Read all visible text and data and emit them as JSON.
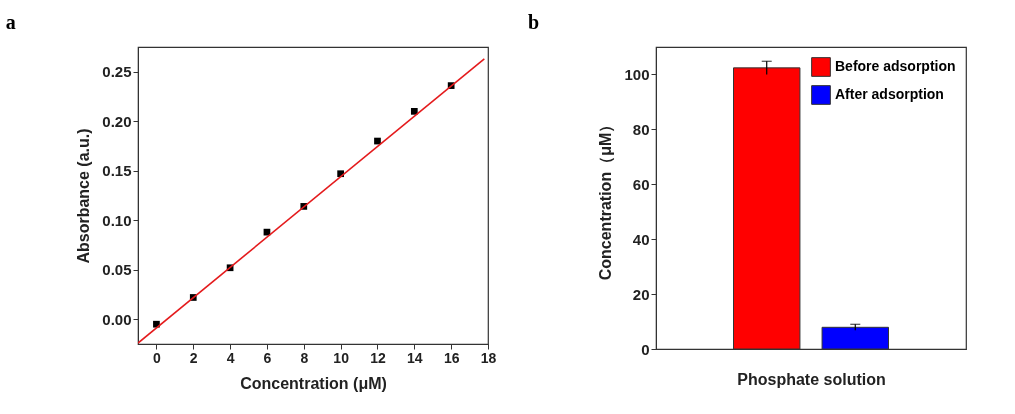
{
  "chart_data": [
    {
      "type": "scatter",
      "title": "a",
      "xlabel": "Concentration (μM)",
      "ylabel": "Absorbance (a.u.)",
      "xlim": [
        -1,
        18
      ],
      "xticks": [
        0,
        2,
        4,
        6,
        8,
        10,
        12,
        14,
        16,
        18
      ],
      "ylim": [
        -0.025,
        0.275
      ],
      "yticks": [
        {
          "value": 0,
          "label": "0.00"
        },
        {
          "value": 0.05,
          "label": "0.05"
        },
        {
          "value": 0.1,
          "label": "0.10"
        },
        {
          "value": 0.15,
          "label": "0.15"
        },
        {
          "value": 0.2,
          "label": "0.20"
        },
        {
          "value": 0.25,
          "label": "0.25"
        }
      ],
      "grid": false,
      "legend": false,
      "marker": "square",
      "x": [
        0,
        2,
        4,
        6,
        8,
        10,
        12,
        14,
        16
      ],
      "series": [
        {
          "color": "#000000",
          "values": [
            -0.005,
            0.022,
            0.052,
            0.088,
            0.114,
            0.147,
            0.18,
            0.21,
            0.236
          ]
        },
        {
          "type": "line",
          "marker": "none",
          "color": "#e41a1c",
          "x": [
            -1,
            17.8
          ],
          "values": [
            -0.024,
            0.263
          ]
        }
      ]
    },
    {
      "type": "bar",
      "title": "b",
      "xlabel": "Phosphate solution",
      "ylabel": "Concentration（μM）",
      "categories": [
        null
      ],
      "ylim": [
        0,
        110
      ],
      "yticks": [
        0,
        20,
        40,
        60,
        80,
        100
      ],
      "grid": false,
      "legend": "top right",
      "series": [
        {
          "name": "Before adsorption",
          "color": "#ff0000",
          "values": [
            102.4
          ],
          "errors": [
            2.4
          ]
        },
        {
          "name": "After adsorption",
          "color": "#0000ff",
          "values": [
            7.9
          ],
          "errors": [
            1.1
          ]
        }
      ]
    }
  ]
}
